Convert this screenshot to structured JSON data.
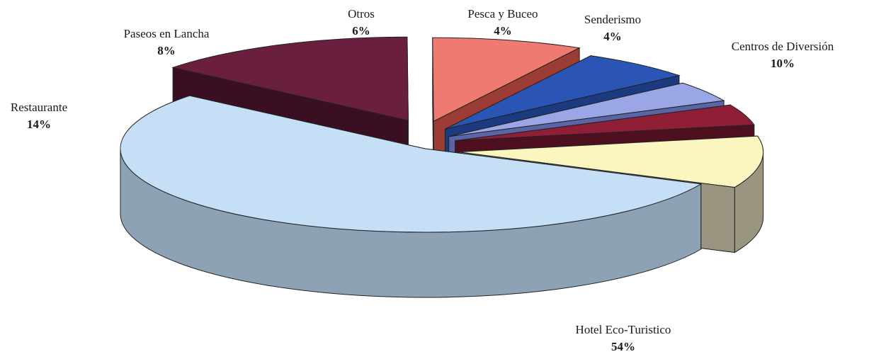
{
  "chart_data": {
    "type": "pie",
    "style": "3d-exploded",
    "legend": "none",
    "slices": [
      {
        "label": "Hotel Eco-Turistico",
        "value": 54,
        "pct_label": "54%",
        "color": "#c5dff7",
        "side_color": "#8ea2b5"
      },
      {
        "label": "Restaurante",
        "value": 14,
        "pct_label": "14%",
        "color": "#6b1f3f",
        "side_color": "#3a0f22"
      },
      {
        "label": "Paseos en Lancha",
        "value": 8,
        "pct_label": "8%",
        "color": "#ee7a72",
        "side_color": "#9b3d35"
      },
      {
        "label": "Otros",
        "value": 6,
        "pct_label": "6%",
        "color": "#2a55b4",
        "side_color": "#1b3a80"
      },
      {
        "label": "Pesca y Buceo",
        "value": 4,
        "pct_label": "4%",
        "color": "#9aa6e6",
        "side_color": "#5a65a8"
      },
      {
        "label": "Senderismo",
        "value": 4,
        "pct_label": "4%",
        "color": "#8e1f36",
        "side_color": "#4e0f1f"
      },
      {
        "label": "Centros de Diversión",
        "value": 10,
        "pct_label": "10%",
        "color": "#fbf6c0",
        "side_color": "#9a9580"
      }
    ]
  }
}
